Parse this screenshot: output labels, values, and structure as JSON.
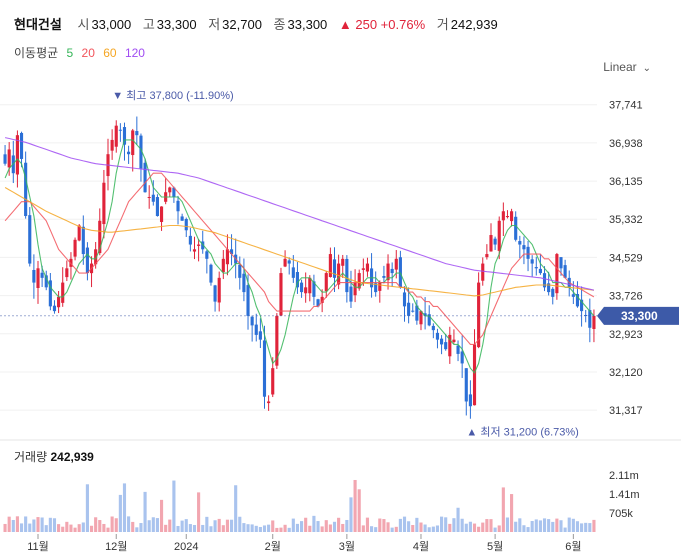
{
  "header": {
    "name": "현대건설",
    "open_label": "시",
    "open": "33,000",
    "high_label": "고",
    "high": "33,300",
    "low_label": "저",
    "low": "32,700",
    "close_label": "종",
    "close": "33,300",
    "change": "▲ 250 +0.76%",
    "volume_label": "거",
    "volume": "242,939"
  },
  "ma_legend": {
    "label": "이동평균",
    "items": [
      {
        "text": "5",
        "color": "#35b558"
      },
      {
        "text": "20",
        "color": "#f2545b"
      },
      {
        "text": "60",
        "color": "#f5a623"
      },
      {
        "text": "120",
        "color": "#a04cf2"
      }
    ]
  },
  "scale_mode": "Linear",
  "current_price_tag": "33,300",
  "max_annotation": "▼ 최고 37,800 (-11.90%)",
  "min_annotation": "▲ 최저 31,200 (6.73%)",
  "volume_title": {
    "label": "거래량",
    "value": "242,939"
  },
  "colors": {
    "up": "#e0233a",
    "down": "#2b6fd6",
    "tag": "#3d5aa8"
  },
  "chart_data": {
    "type": "candlestick",
    "y_ticks": [
      "37,741",
      "36,938",
      "36,135",
      "35,332",
      "34,529",
      "33,726",
      "32,923",
      "32,120",
      "31,317"
    ],
    "y_tick_values": [
      37741,
      36938,
      36135,
      35332,
      34529,
      33726,
      32923,
      32120,
      31317
    ],
    "x_ticks": [
      "11월",
      "12월",
      "2024",
      "2월",
      "3월",
      "4월",
      "5월",
      "6월"
    ],
    "x_tick_index": [
      8,
      27,
      44,
      65,
      83,
      101,
      119,
      138
    ],
    "volume_ticks": [
      "2.11m",
      "1.41m",
      "705k"
    ],
    "volume_tick_values": [
      2110000,
      1410000,
      705000
    ],
    "max": 37800,
    "min": 31200,
    "closes": [
      36500,
      36800,
      36300,
      37100,
      36600,
      35400,
      34400,
      34000,
      34300,
      34100,
      33900,
      33500,
      33400,
      33700,
      34000,
      34300,
      34500,
      34900,
      35200,
      34600,
      34200,
      34400,
      34700,
      35300,
      36100,
      36700,
      37000,
      37300,
      37200,
      36900,
      36700,
      37200,
      37100,
      36400,
      35900,
      35800,
      35700,
      35400,
      35600,
      35900,
      36000,
      35800,
      35500,
      35300,
      35100,
      34800,
      34700,
      34800,
      34700,
      34500,
      34000,
      33600,
      34100,
      34500,
      34700,
      34600,
      34400,
      34100,
      33800,
      33300,
      33100,
      32900,
      32800,
      31600,
      31500,
      32200,
      33300,
      34200,
      34500,
      34400,
      34100,
      33900,
      33800,
      33900,
      34100,
      33700,
      33500,
      33700,
      34200,
      34600,
      34100,
      34400,
      34500,
      33800,
      33600,
      34000,
      34200,
      34300,
      34400,
      33900,
      33800,
      34000,
      34100,
      34400,
      34200,
      34500,
      33900,
      33500,
      33300,
      33400,
      33200,
      33400,
      33300,
      33100,
      33000,
      32800,
      32700,
      32600,
      32900,
      32800,
      32500,
      32300,
      31500,
      31400,
      32700,
      34000,
      34400,
      34600,
      35000,
      34800,
      35300,
      35500,
      35400,
      35500,
      34900,
      34800,
      34700,
      34500,
      34400,
      34300,
      34200,
      33900,
      33800,
      33700,
      34600,
      34300,
      34100,
      33900,
      33700,
      33500,
      33400,
      33300,
      33050,
      33300
    ],
    "ma": {
      "5": [
        36200,
        36400,
        36500,
        36600,
        36500,
        36200,
        35800,
        35400,
        34800,
        34300,
        34100,
        33900,
        33800,
        33700,
        33700,
        33800,
        34000,
        34200,
        34400,
        34500,
        34600,
        34500,
        34500,
        34700,
        35000,
        35300,
        35700,
        36300,
        36700,
        37000,
        37000,
        37000,
        36900,
        36800,
        36600,
        36300,
        36000,
        35900,
        35800,
        35800,
        35800,
        35800,
        35800,
        35700,
        35500,
        35300,
        35100,
        34900,
        34800,
        34700,
        34600,
        34400,
        34300,
        34200,
        34200,
        34300,
        34400,
        34400,
        34300,
        34000,
        33800,
        33500,
        33300,
        32900,
        32600,
        32300,
        32400,
        32600,
        32900,
        33300,
        33700,
        34000,
        34100,
        34100,
        34100,
        34000,
        33900,
        33800,
        33800,
        33900,
        34000,
        34100,
        34200,
        34100,
        34000,
        33900,
        33900,
        34000,
        34100,
        34100,
        34100,
        34000,
        34000,
        34100,
        34100,
        34200,
        34200,
        34000,
        33800,
        33700,
        33500,
        33400,
        33300,
        33300,
        33200,
        33100,
        33000,
        32900,
        32800,
        32700,
        32700,
        32600,
        32400,
        32200,
        32100,
        32300,
        32700,
        33200,
        33900,
        34400,
        34600,
        34900,
        35100,
        35200,
        35200,
        35100,
        35000,
        34900,
        34800,
        34600,
        34400,
        34300,
        34200,
        34000,
        34000,
        34000,
        33900,
        33900,
        33800,
        33700,
        33600,
        33500,
        33400,
        33300
      ],
      "20": [
        35300,
        35400,
        35500,
        35600,
        35700,
        35700,
        35700,
        35600,
        35500,
        35400,
        35300,
        35100,
        34900,
        34700,
        34600,
        34500,
        34400,
        34300,
        34200,
        34200,
        34200,
        34300,
        34400,
        34500,
        34600,
        34700,
        34900,
        35100,
        35300,
        35500,
        35700,
        35800,
        35900,
        36000,
        36100,
        36200,
        36300,
        36300,
        36300,
        36200,
        36100,
        36000,
        35900,
        35800,
        35700,
        35600,
        35500,
        35400,
        35300,
        35200,
        35100,
        35000,
        34900,
        34800,
        34700,
        34600,
        34500,
        34400,
        34300,
        34200,
        34100,
        34000,
        33900,
        33800,
        33600,
        33500,
        33400,
        33400,
        33400,
        33400,
        33400,
        33400,
        33400,
        33400,
        33400,
        33500,
        33500,
        33600,
        33700,
        33800,
        33900,
        34000,
        34000,
        34000,
        34000,
        34000,
        34000,
        34000,
        34000,
        34000,
        34000,
        34000,
        34000,
        34000,
        34000,
        34000,
        33900,
        33900,
        33800,
        33800,
        33700,
        33700,
        33600,
        33600,
        33500,
        33500,
        33400,
        33300,
        33200,
        33100,
        33000,
        32900,
        32800,
        32700,
        32700,
        32800,
        32900,
        33100,
        33300,
        33500,
        33700,
        33900,
        34100,
        34300,
        34400,
        34500,
        34600,
        34600,
        34600,
        34600,
        34600,
        34500,
        34500,
        34400,
        34300,
        34200,
        34100,
        34000,
        33950,
        33900,
        33850,
        33800,
        33750,
        33700
      ],
      "60": [
        36000,
        35950,
        35900,
        35850,
        35800,
        35750,
        35700,
        35650,
        35600,
        35550,
        35500,
        35460,
        35420,
        35380,
        35340,
        35300,
        35260,
        35220,
        35180,
        35140,
        35120,
        35100,
        35090,
        35080,
        35070,
        35060,
        35060,
        35070,
        35080,
        35090,
        35100,
        35110,
        35120,
        35130,
        35140,
        35150,
        35160,
        35170,
        35180,
        35190,
        35200,
        35200,
        35200,
        35190,
        35180,
        35170,
        35150,
        35130,
        35110,
        35090,
        35070,
        35050,
        35020,
        34990,
        34960,
        34930,
        34900,
        34870,
        34840,
        34810,
        34780,
        34750,
        34720,
        34690,
        34660,
        34630,
        34600,
        34570,
        34540,
        34510,
        34480,
        34450,
        34420,
        34390,
        34360,
        34330,
        34300,
        34270,
        34240,
        34210,
        34180,
        34150,
        34120,
        34090,
        34060,
        34030,
        34000,
        33990,
        33980,
        33970,
        33960,
        33950,
        33940,
        33930,
        33920,
        33910,
        33900,
        33890,
        33880,
        33870,
        33860,
        33850,
        33840,
        33830,
        33820,
        33810,
        33800,
        33790,
        33780,
        33770,
        33760,
        33750,
        33740,
        33730,
        33720,
        33730,
        33740,
        33760,
        33780,
        33800,
        33820,
        33840,
        33860,
        33880,
        33900,
        33910,
        33920,
        33930,
        33940,
        33950,
        33950,
        33950,
        33950,
        33940,
        33930,
        33920,
        33910,
        33900,
        33890,
        33880,
        33870,
        33860,
        33850,
        33840
      ],
      "120": [
        37050,
        37030,
        37010,
        36990,
        36970,
        36950,
        36920,
        36890,
        36860,
        36830,
        36800,
        36770,
        36740,
        36710,
        36680,
        36650,
        36620,
        36600,
        36580,
        36560,
        36540,
        36520,
        36500,
        36490,
        36480,
        36470,
        36460,
        36450,
        36440,
        36430,
        36420,
        36410,
        36400,
        36390,
        36380,
        36370,
        36360,
        36350,
        36340,
        36330,
        36320,
        36310,
        36300,
        36280,
        36260,
        36240,
        36220,
        36200,
        36170,
        36140,
        36110,
        36080,
        36050,
        36020,
        35990,
        35960,
        35930,
        35900,
        35870,
        35840,
        35810,
        35780,
        35750,
        35720,
        35690,
        35660,
        35630,
        35600,
        35570,
        35540,
        35510,
        35480,
        35450,
        35420,
        35390,
        35360,
        35330,
        35300,
        35270,
        35240,
        35210,
        35180,
        35150,
        35120,
        35090,
        35060,
        35030,
        35000,
        34970,
        34940,
        34910,
        34880,
        34850,
        34820,
        34790,
        34760,
        34730,
        34700,
        34670,
        34640,
        34610,
        34580,
        34550,
        34520,
        34490,
        34460,
        34430,
        34400,
        34380,
        34360,
        34340,
        34320,
        34300,
        34280,
        34260,
        34250,
        34240,
        34230,
        34220,
        34210,
        34200,
        34190,
        34180,
        34170,
        34160,
        34150,
        34140,
        34130,
        34120,
        34110,
        34100,
        34080,
        34060,
        34040,
        34020,
        34000,
        33980,
        33960,
        33940,
        33920,
        33900,
        33880,
        33860,
        33840
      ]
    }
  }
}
